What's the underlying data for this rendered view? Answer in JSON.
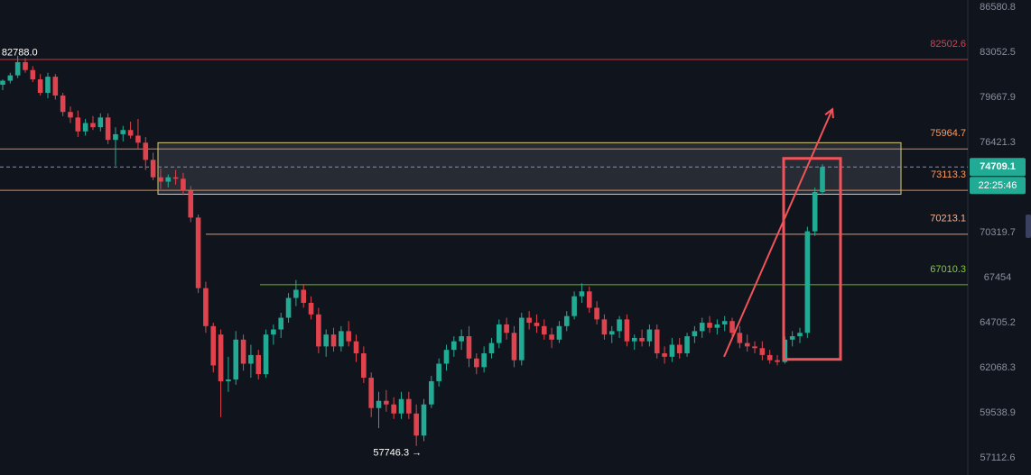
{
  "chart_data": {
    "type": "candlestick",
    "up_color": "#22ab94",
    "down_color": "#e0434d",
    "ylim": [
      56216,
      87159
    ],
    "log_scale": true,
    "yticks": [
      86580.8,
      83052.5,
      79667.9,
      76421.3,
      70319.7,
      67454.0,
      64705.2,
      62068.3,
      59538.9,
      57112.6
    ],
    "open": [
      80600,
      80900,
      81300,
      82300,
      81700,
      81000,
      80000,
      81200,
      79800,
      78600,
      78200,
      77200,
      77800,
      77500,
      78200,
      76600,
      77000,
      77300,
      76900,
      76400,
      75200,
      74000,
      73700,
      74000,
      73900,
      73100,
      71300,
      66800,
      64500,
      64000,
      61300,
      61400,
      63700,
      62300,
      62800,
      61700,
      64000,
      64300,
      65000,
      66200,
      66700,
      65900,
      65200,
      63300,
      64000,
      63300,
      64200,
      63600,
      62900,
      61500,
      59800,
      60200,
      60000,
      59500,
      60300,
      59500,
      58300,
      60000,
      61300,
      62300,
      63100,
      63600,
      63900,
      62600,
      62100,
      62900,
      63500,
      64600,
      64100,
      62500,
      65000,
      64700,
      64500,
      64000,
      63700,
      64500,
      65100,
      66300,
      66600,
      65600,
      64900,
      64000,
      64200,
      64900,
      63600,
      63800,
      63600,
      64300,
      62900,
      62700,
      63400,
      62900,
      63900,
      64200,
      64700,
      64400,
      64600,
      64800,
      64100,
      63500,
      63300,
      63200,
      62800,
      62500,
      62400,
      63700,
      63900,
      64100,
      70400,
      73000
    ],
    "high": [
      81000,
      81500,
      82788,
      82600,
      82000,
      81400,
      81500,
      81400,
      80000,
      79000,
      78700,
      78100,
      78300,
      78500,
      78500,
      77500,
      77600,
      77900,
      78100,
      76800,
      75700,
      74600,
      74200,
      74500,
      74300,
      73400,
      71500,
      67200,
      64700,
      64300,
      62700,
      64200,
      64000,
      63400,
      63100,
      64300,
      64600,
      65300,
      66500,
      67300,
      67000,
      66300,
      65600,
      64300,
      64400,
      64500,
      64800,
      64000,
      63300,
      61800,
      60700,
      60800,
      60400,
      60700,
      60700,
      60000,
      60300,
      61600,
      62600,
      63400,
      63900,
      64300,
      64500,
      62900,
      63300,
      63800,
      64900,
      65000,
      64500,
      65300,
      65400,
      65200,
      64900,
      64400,
      64800,
      65400,
      66600,
      67100,
      66900,
      66000,
      65200,
      64500,
      65100,
      65200,
      64000,
      64300,
      64600,
      64600,
      63300,
      63800,
      63800,
      64100,
      64500,
      65000,
      65100,
      64900,
      65100,
      65000,
      64500,
      64000,
      63600,
      63600,
      63100,
      62800,
      63900,
      64200,
      64400,
      70700,
      73300,
      74900
    ],
    "low": [
      80200,
      80700,
      81100,
      81500,
      80800,
      79800,
      79600,
      79500,
      78300,
      77800,
      76800,
      76900,
      77300,
      77200,
      76300,
      74800,
      76500,
      76700,
      76000,
      74500,
      73800,
      73200,
      73300,
      73500,
      72800,
      71000,
      66500,
      64100,
      61800,
      59300,
      60700,
      61100,
      61900,
      61500,
      61400,
      61500,
      63400,
      63800,
      64700,
      65700,
      65600,
      64900,
      62900,
      62700,
      63000,
      63000,
      63300,
      62400,
      61200,
      59300,
      58700,
      59600,
      59200,
      59200,
      59200,
      57746.3,
      58000,
      59800,
      61000,
      61900,
      62700,
      63100,
      62100,
      61700,
      61800,
      62600,
      63200,
      63700,
      62100,
      62200,
      64300,
      64100,
      63700,
      63200,
      63500,
      64200,
      64900,
      65900,
      65300,
      64600,
      63700,
      63500,
      63800,
      63300,
      63100,
      63300,
      63300,
      62600,
      62300,
      62400,
      62600,
      62700,
      63500,
      63800,
      64100,
      64000,
      64200,
      63900,
      63200,
      63000,
      62900,
      62500,
      62300,
      62200,
      62300,
      63300,
      63500,
      63800,
      70100,
      72800
    ],
    "close": [
      80900,
      81300,
      82300,
      81700,
      81000,
      80000,
      81200,
      79800,
      78600,
      78200,
      77200,
      77800,
      77500,
      78200,
      76600,
      77000,
      77300,
      76900,
      76400,
      75200,
      74000,
      73700,
      74000,
      73900,
      73100,
      71300,
      66800,
      64500,
      62200,
      61300,
      61400,
      63700,
      62300,
      62800,
      61700,
      64000,
      64300,
      65000,
      66200,
      66700,
      65900,
      65200,
      63300,
      64000,
      63300,
      64200,
      63600,
      62900,
      61500,
      59800,
      60200,
      60000,
      59500,
      60300,
      59500,
      58300,
      60000,
      61300,
      62300,
      63100,
      63600,
      63900,
      62600,
      62100,
      62900,
      63500,
      64600,
      64100,
      62500,
      65000,
      64700,
      64500,
      64000,
      63700,
      64500,
      65100,
      66300,
      66600,
      65600,
      64900,
      64000,
      64200,
      64900,
      63600,
      63800,
      63600,
      64300,
      62900,
      62700,
      63400,
      62900,
      63900,
      64200,
      64700,
      64400,
      64600,
      64800,
      64100,
      63500,
      63300,
      63200,
      62800,
      62500,
      62400,
      63700,
      63900,
      64100,
      70400,
      73000,
      74709.1
    ],
    "high_label": "82788.0",
    "low_label": "57746.3 →",
    "countdown": "22:25:46",
    "levels": [
      {
        "value": 82502.6,
        "color": "#f23645"
      },
      {
        "value": 75964.7,
        "color": "#ff9b5e"
      },
      {
        "value": 73113.3,
        "color": "#ff9b5e"
      },
      {
        "value": 70213.1,
        "color": "#ffb08a"
      },
      {
        "value": 67010.3,
        "color": "#7ed321"
      }
    ],
    "zone": {
      "top": 76400,
      "bottom": 72850
    },
    "highlight": {
      "top": 75300,
      "bottom": 62550
    },
    "arrow": {
      "from": 62700,
      "to": 78800
    }
  }
}
